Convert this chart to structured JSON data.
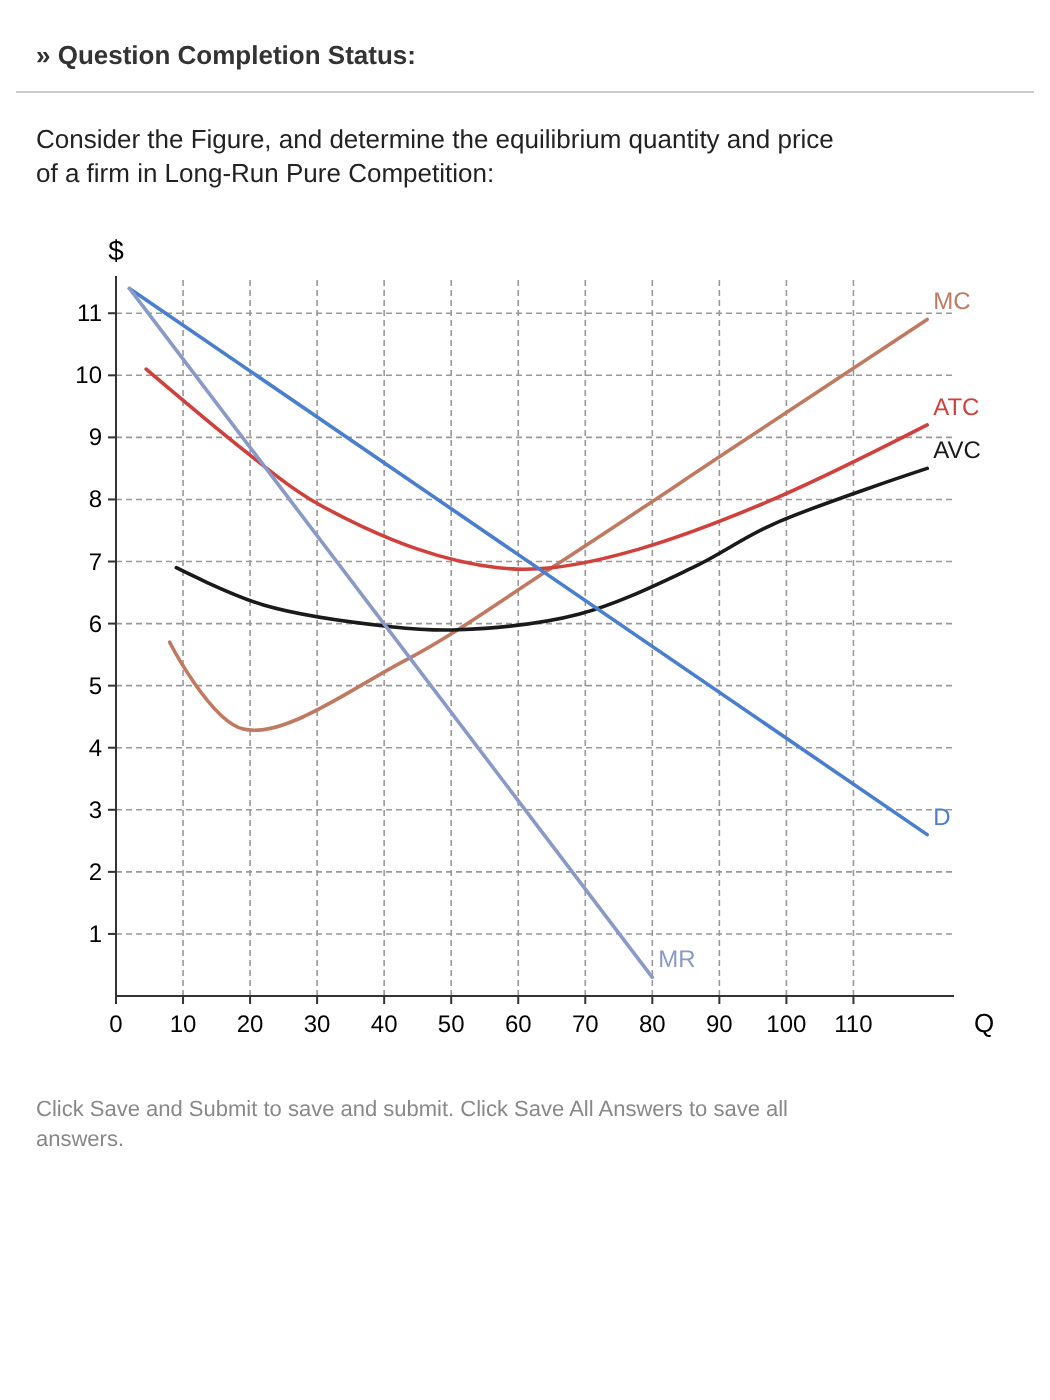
{
  "chart_data": {
    "type": "line",
    "title": "Consider the Figure, and determine the equilibrium quantity and price of a firm in Long-Run Pure Competition:",
    "xlabel": "Q",
    "ylabel": "$",
    "annotations": [
      "» Question Completion Status:",
      "Click Save and Submit to save and submit. Click Save All Answers to save all answers."
    ],
    "xlim": [
      0,
      125
    ],
    "ylim": [
      0,
      11.6
    ],
    "xticks": [
      0,
      10,
      20,
      30,
      40,
      50,
      60,
      70,
      80,
      90,
      100,
      110
    ],
    "yticks": [
      1,
      2,
      3,
      4,
      5,
      6,
      7,
      8,
      9,
      10,
      11
    ],
    "grid": true,
    "line_style": "solid",
    "series": [
      {
        "name": "MC",
        "color": "#c07a62",
        "x": [
          8,
          19,
          43,
          65,
          93,
          121
        ],
        "values": [
          5.7,
          4.3,
          5.4,
          6.9,
          8.9,
          10.9
        ]
      },
      {
        "name": "ATC",
        "color": "#d0403c",
        "x": [
          4.5,
          19,
          29,
          45,
          57,
          65,
          78,
          98,
          121
        ],
        "values": [
          10.1,
          8.8,
          8,
          7.2,
          6.9,
          6.9,
          7.2,
          8,
          9.2
        ]
      },
      {
        "name": "AVC",
        "color": "#1a1a1a",
        "x": [
          9,
          22,
          41,
          51,
          69,
          86,
          98,
          121
        ],
        "values": [
          6.9,
          6.3,
          5.95,
          5.9,
          6.15,
          6.9,
          7.6,
          8.5
        ]
      },
      {
        "name": "D",
        "color": "#4a7fd0",
        "x": [
          2,
          121
        ],
        "values": [
          11.4,
          2.6
        ]
      },
      {
        "name": "MR",
        "color": "#8a9ac8",
        "x": [
          2,
          80
        ],
        "values": [
          11.4,
          0.3
        ]
      }
    ]
  }
}
